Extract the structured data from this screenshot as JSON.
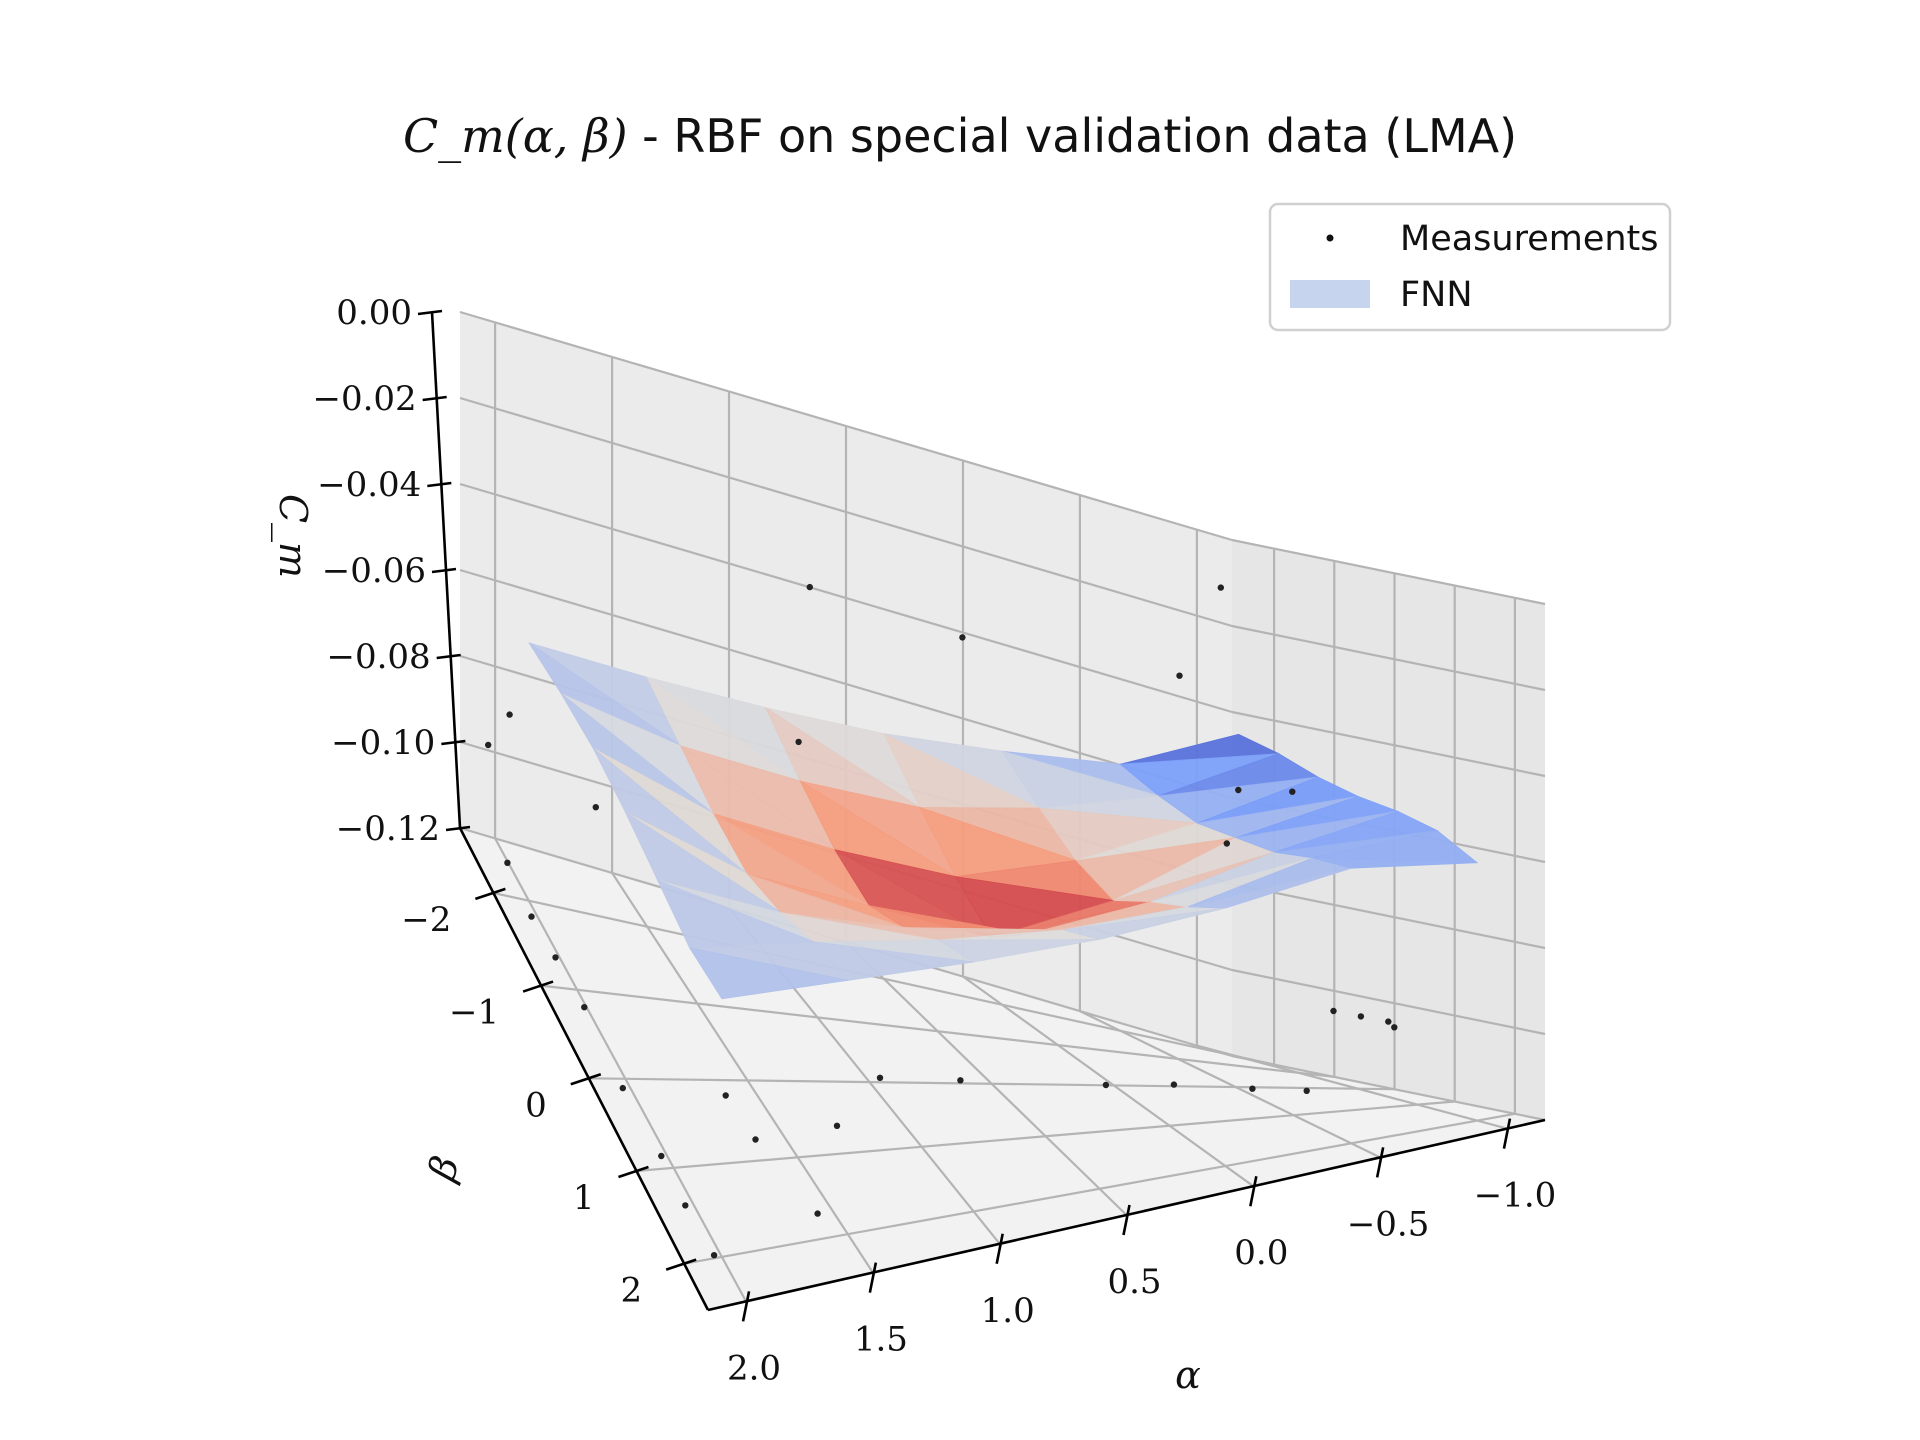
{
  "chart_data": {
    "type": "surface3d",
    "title_math": "C_m(α, β)",
    "title_rest": " - RBF on special validation data (LMA)",
    "xlabel": "α",
    "ylabel": "β",
    "zlabel": "C_m",
    "xlim": [
      2.15,
      -1.15
    ],
    "ylim": [
      -2.7,
      2.5
    ],
    "zlim": [
      -0.12,
      0.0
    ],
    "x_ticks": [
      "2.0",
      "1.5",
      "1.0",
      "0.5",
      "0.0",
      "−0.5",
      "−1.0"
    ],
    "y_ticks": [
      "−2",
      "−1",
      "0",
      "1",
      "2"
    ],
    "z_ticks": [
      "0.00",
      "−0.02",
      "−0.04",
      "−0.06",
      "−0.08",
      "−0.10",
      "−0.12"
    ],
    "legend": [
      {
        "label": "Measurements",
        "kind": "dot",
        "color": "#111111"
      },
      {
        "label": "FNN",
        "kind": "patch",
        "color": "#c6d4ee"
      }
    ],
    "legend_position": "top-right",
    "colormap": "coolwarm",
    "surface": {
      "alpha": [
        2.0,
        1.5,
        1.0,
        0.5,
        0.0,
        -0.5,
        -1.0
      ],
      "beta": [
        -2.0,
        -1.33,
        -0.67,
        0.0,
        0.67,
        1.33,
        2.0
      ],
      "cm": [
        [
          -0.06,
          -0.058,
          -0.057,
          -0.058,
          -0.06,
          -0.062,
          -0.06
        ],
        [
          -0.062,
          -0.066,
          -0.07,
          -0.072,
          -0.069,
          -0.064,
          -0.061
        ],
        [
          -0.063,
          -0.07,
          -0.076,
          -0.079,
          -0.074,
          -0.067,
          -0.062
        ],
        [
          -0.063,
          -0.072,
          -0.08,
          -0.086,
          -0.077,
          -0.068,
          -0.062
        ],
        [
          -0.061,
          -0.068,
          -0.074,
          -0.077,
          -0.071,
          -0.066,
          -0.06
        ],
        [
          -0.058,
          -0.061,
          -0.063,
          -0.062,
          -0.061,
          -0.058,
          -0.056
        ],
        [
          -0.045,
          -0.047,
          -0.05,
          -0.052,
          -0.053,
          -0.055,
          -0.06
        ]
      ]
    },
    "measurements": [
      {
        "alpha": 2.05,
        "beta": -2.2,
        "cm": -0.116
      },
      {
        "alpha": 2.05,
        "beta": -1.7,
        "cm": -0.118
      },
      {
        "alpha": 2.05,
        "beta": -1.2,
        "cm": -0.117
      },
      {
        "alpha": 2.05,
        "beta": -0.6,
        "cm": -0.116
      },
      {
        "alpha": 2.05,
        "beta": 0.2,
        "cm": -0.118
      },
      {
        "alpha": 2.05,
        "beta": 1.0,
        "cm": -0.117
      },
      {
        "alpha": 2.05,
        "beta": 1.5,
        "cm": -0.118
      },
      {
        "alpha": 2.05,
        "beta": 2.1,
        "cm": -0.117
      },
      {
        "alpha": 1.65,
        "beta": 0.3,
        "cm": -0.118
      },
      {
        "alpha": 1.65,
        "beta": 0.9,
        "cm": -0.117
      },
      {
        "alpha": 1.6,
        "beta": 1.9,
        "cm": -0.116
      },
      {
        "alpha": 1.3,
        "beta": 0.8,
        "cm": -0.117
      },
      {
        "alpha": 1.0,
        "beta": 0.2,
        "cm": -0.116
      },
      {
        "alpha": 0.65,
        "beta": 0.1,
        "cm": -0.118
      },
      {
        "alpha": 0.1,
        "beta": 0.3,
        "cm": -0.117
      },
      {
        "alpha": -0.2,
        "beta": 0.2,
        "cm": -0.118
      },
      {
        "alpha": -0.45,
        "beta": 0.5,
        "cm": -0.117
      },
      {
        "alpha": -0.6,
        "beta": 0.8,
        "cm": -0.116
      },
      {
        "alpha": -0.9,
        "beta": 0.0,
        "cm": -0.102
      },
      {
        "alpha": -1.0,
        "beta": 0.05,
        "cm": -0.103
      },
      {
        "alpha": -1.1,
        "beta": 0.1,
        "cm": -0.104
      },
      {
        "alpha": -1.1,
        "beta": 0.2,
        "cm": -0.105
      },
      {
        "alpha": -0.95,
        "beta": -2.0,
        "cm": -0.071
      },
      {
        "alpha": -1.1,
        "beta": -2.4,
        "cm": -0.058
      },
      {
        "alpha": -0.85,
        "beta": -2.4,
        "cm": -0.035
      },
      {
        "alpha": -1.0,
        "beta": -1.1,
        "cm": -0.055
      },
      {
        "alpha": 0.7,
        "beta": -2.5,
        "cm": -0.038
      },
      {
        "alpha": 0.05,
        "beta": -2.5,
        "cm": -0.04
      },
      {
        "alpha": -1.0,
        "beta": -2.3,
        "cm": -0.012
      },
      {
        "alpha": 2.0,
        "beta": -2.4,
        "cm": -0.085
      },
      {
        "alpha": 1.1,
        "beta": -0.9,
        "cm": -0.055
      },
      {
        "alpha": 1.8,
        "beta": -1.6,
        "cm": -0.088
      },
      {
        "alpha": 2.05,
        "beta": -2.6,
        "cm": -0.097
      }
    ]
  }
}
